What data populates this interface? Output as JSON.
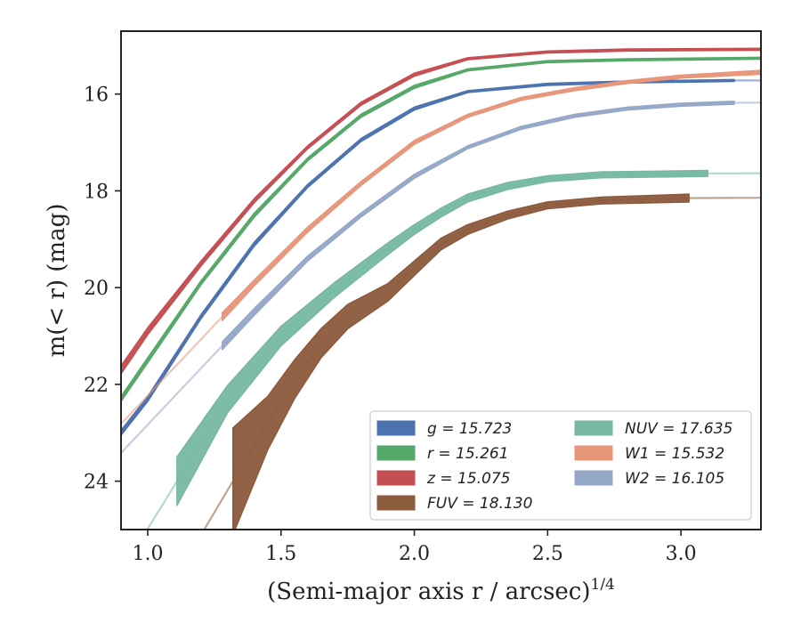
{
  "chart_data": {
    "type": "line",
    "xlabel": "(Semi-major axis r / arcsec)",
    "xlabel_sup": "1/4",
    "ylabel": "m(< r) (mag)",
    "xlim": [
      0.9,
      3.3
    ],
    "ylim": [
      25.0,
      14.7
    ],
    "y_inverted": true,
    "grid": false,
    "legend_position": "lower-right",
    "xticks": [
      "1.0",
      "1.5",
      "2.0",
      "2.5",
      "3.0"
    ],
    "xtick_values": [
      1.0,
      1.5,
      2.0,
      2.5,
      3.0
    ],
    "yticks": [
      "16",
      "18",
      "20",
      "22",
      "24"
    ],
    "ytick_values": [
      16,
      18,
      20,
      22,
      24
    ],
    "series": [
      {
        "key": "g",
        "label": "g = 15.723",
        "color": "#4c72b0",
        "x": [
          0.9,
          1.0,
          1.2,
          1.4,
          1.6,
          1.8,
          2.0,
          2.2,
          2.5,
          2.8,
          3.2
        ],
        "y": [
          23.0,
          22.3,
          20.6,
          19.1,
          17.9,
          16.95,
          16.3,
          15.95,
          15.8,
          15.75,
          15.72
        ],
        "band": [
          0.05,
          0.05,
          0.04,
          0.04,
          0.03,
          0.03,
          0.03,
          0.02,
          0.02,
          0.02,
          0.02
        ],
        "x_end": 3.2,
        "halo_until": 3.3
      },
      {
        "key": "r",
        "label": "r = 15.261",
        "color": "#55a868",
        "x": [
          0.9,
          1.0,
          1.2,
          1.4,
          1.6,
          1.8,
          2.0,
          2.2,
          2.5,
          2.8,
          3.3
        ],
        "y": [
          22.3,
          21.5,
          19.9,
          18.5,
          17.35,
          16.45,
          15.85,
          15.5,
          15.33,
          15.29,
          15.26
        ],
        "band": [
          0.05,
          0.05,
          0.04,
          0.04,
          0.03,
          0.03,
          0.03,
          0.02,
          0.02,
          0.02,
          0.02
        ],
        "x_end": 3.3,
        "halo_until": 3.3
      },
      {
        "key": "z",
        "label": "z = 15.075",
        "color": "#c44e52",
        "x": [
          0.9,
          1.0,
          1.2,
          1.4,
          1.6,
          1.8,
          2.0,
          2.2,
          2.5,
          2.8,
          3.3
        ],
        "y": [
          21.7,
          20.9,
          19.5,
          18.2,
          17.1,
          16.2,
          15.6,
          15.27,
          15.13,
          15.09,
          15.075
        ],
        "band": [
          0.08,
          0.07,
          0.05,
          0.04,
          0.03,
          0.03,
          0.03,
          0.02,
          0.02,
          0.02,
          0.02
        ],
        "x_end": 3.15,
        "halo_until": 3.3
      },
      {
        "key": "FUV",
        "label": "FUV = 18.130",
        "color": "#8c5a3c",
        "x": [
          1.32,
          1.45,
          1.55,
          1.65,
          1.75,
          1.9,
          2.0,
          2.1,
          2.2,
          2.35,
          2.5,
          2.7,
          3.03
        ],
        "y": [
          24.0,
          22.8,
          21.9,
          21.15,
          20.6,
          20.1,
          19.6,
          19.1,
          18.8,
          18.5,
          18.3,
          18.2,
          18.15
        ],
        "band": [
          1.1,
          0.55,
          0.4,
          0.3,
          0.25,
          0.18,
          0.15,
          0.12,
          0.1,
          0.08,
          0.07,
          0.07,
          0.08
        ],
        "x_end": 3.03,
        "halo_from": 1.0,
        "halo_until": 3.3
      },
      {
        "key": "NUV",
        "label": "NUV = 17.635",
        "color": "#76b8a2",
        "x": [
          1.11,
          1.3,
          1.5,
          1.7,
          1.9,
          2.0,
          2.1,
          2.2,
          2.35,
          2.5,
          2.7,
          3.1
        ],
        "y": [
          24.0,
          22.3,
          21.0,
          20.05,
          19.2,
          18.8,
          18.45,
          18.15,
          17.9,
          17.75,
          17.67,
          17.64
        ],
        "band": [
          0.5,
          0.28,
          0.2,
          0.15,
          0.12,
          0.1,
          0.09,
          0.08,
          0.07,
          0.06,
          0.06,
          0.06
        ],
        "x_end": 3.1,
        "halo_from": 0.95,
        "halo_until": 3.3
      },
      {
        "key": "W1",
        "label": "W1 = 15.532",
        "color": "#e8967a",
        "x": [
          1.28,
          1.4,
          1.6,
          1.8,
          2.0,
          2.2,
          2.4,
          2.6,
          2.8,
          3.0,
          3.3
        ],
        "y": [
          20.6,
          19.9,
          18.8,
          17.85,
          17.0,
          16.45,
          16.1,
          15.9,
          15.75,
          15.64,
          15.55
        ],
        "band": [
          0.08,
          0.06,
          0.05,
          0.04,
          0.04,
          0.03,
          0.03,
          0.03,
          0.03,
          0.03,
          0.04
        ],
        "x_end": 3.3,
        "halo_from": 0.9,
        "halo_until": 3.3
      },
      {
        "key": "W2",
        "label": "W2 = 16.105",
        "color": "#96a8c8",
        "x": [
          1.28,
          1.4,
          1.6,
          1.8,
          2.0,
          2.2,
          2.4,
          2.6,
          2.8,
          3.0,
          3.2
        ],
        "y": [
          21.2,
          20.5,
          19.4,
          18.5,
          17.7,
          17.1,
          16.7,
          16.45,
          16.3,
          16.22,
          16.18
        ],
        "band": [
          0.08,
          0.07,
          0.05,
          0.04,
          0.04,
          0.03,
          0.03,
          0.03,
          0.03,
          0.03,
          0.03
        ],
        "x_end": 3.2,
        "halo_from": 0.9,
        "halo_until": 3.3
      }
    ],
    "legend_columns": [
      [
        "g",
        "r",
        "z",
        "FUV"
      ],
      [
        "NUV",
        "W1",
        "W2"
      ]
    ]
  }
}
